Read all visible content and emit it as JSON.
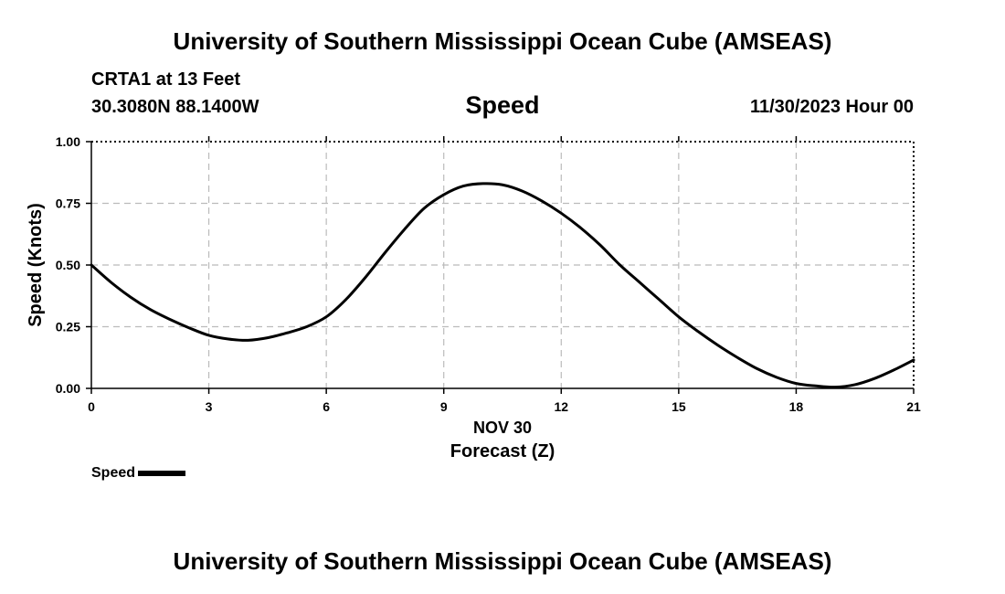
{
  "header": {
    "title": "University of Southern Mississippi Ocean Cube (AMSEAS)",
    "station": "CRTA1 at 13 Feet",
    "coordinates": "30.3080N  88.1400W",
    "datetime": "11/30/2023 Hour 00"
  },
  "footer": {
    "title": "University of Southern Mississippi Ocean Cube (AMSEAS)"
  },
  "chart_data": {
    "type": "line",
    "title": "Speed",
    "xlabel": "Forecast (Z)",
    "x_date_label": "NOV 30",
    "ylabel": "Speed (Knots)",
    "xlim": [
      0,
      21
    ],
    "ylim": [
      0,
      1
    ],
    "x_ticks": [
      0,
      3,
      6,
      9,
      12,
      15,
      18,
      21
    ],
    "y_ticks": [
      0,
      0.25,
      0.5,
      0.75,
      1.0
    ],
    "y_tick_labels": [
      "0.00",
      "0.25",
      "0.50",
      "0.75",
      "1.00"
    ],
    "grid": true,
    "line_color": "#000000",
    "grid_color": "#bbbbbb",
    "series": [
      {
        "name": "Speed",
        "x": [
          0,
          0.5,
          1,
          1.5,
          2,
          2.5,
          3,
          3.5,
          4,
          4.5,
          5,
          5.5,
          6,
          6.5,
          7,
          7.5,
          8,
          8.5,
          9,
          9.5,
          10,
          10.5,
          11,
          11.5,
          12,
          12.5,
          13,
          13.5,
          14,
          14.5,
          15,
          15.5,
          16,
          16.5,
          17,
          17.5,
          18,
          18.5,
          19,
          19.5,
          20,
          20.5,
          21
        ],
        "values": [
          0.5,
          0.43,
          0.37,
          0.32,
          0.28,
          0.245,
          0.215,
          0.2,
          0.195,
          0.205,
          0.225,
          0.25,
          0.29,
          0.36,
          0.45,
          0.55,
          0.645,
          0.73,
          0.785,
          0.82,
          0.83,
          0.825,
          0.8,
          0.76,
          0.71,
          0.65,
          0.58,
          0.5,
          0.43,
          0.36,
          0.29,
          0.23,
          0.175,
          0.125,
          0.08,
          0.045,
          0.02,
          0.01,
          0.005,
          0.015,
          0.04,
          0.075,
          0.115
        ]
      }
    ],
    "legend": {
      "label": "Speed",
      "position": "bottom-left"
    }
  }
}
